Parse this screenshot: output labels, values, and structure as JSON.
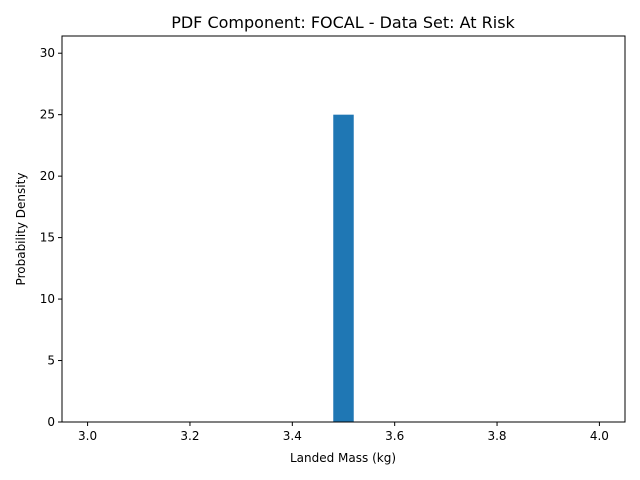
{
  "chart_data": {
    "type": "bar",
    "title": "PDF Component: FOCAL - Data Set: At Risk",
    "xlabel": "Landed Mass (kg)",
    "ylabel": "Probability Density",
    "xlim": [
      2.95,
      4.05
    ],
    "ylim": [
      0,
      31.4
    ],
    "xticks": [
      "3.0",
      "3.2",
      "3.4",
      "3.6",
      "3.8",
      "4.0"
    ],
    "yticks": [
      "0",
      "5",
      "10",
      "15",
      "20",
      "25",
      "30"
    ],
    "bars": [
      {
        "x0": 3.48,
        "x1": 3.52,
        "value": 25
      }
    ],
    "bar_color": "#1f77b4",
    "grid": false
  }
}
